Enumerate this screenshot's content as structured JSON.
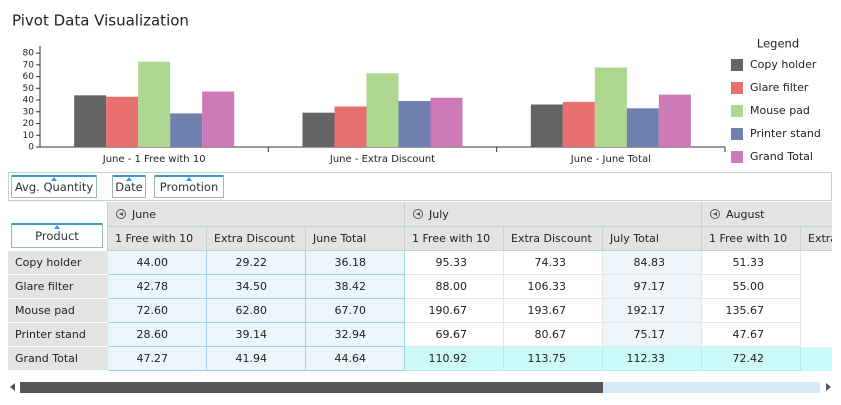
{
  "chart_data": {
    "type": "bar",
    "title": "Pivot Data Visualization",
    "categories": [
      "June - 1 Free with 10",
      "June - Extra Discount",
      "June - June Total"
    ],
    "series": [
      {
        "name": "Copy holder",
        "color": "#646464",
        "values": [
          44.0,
          29.22,
          36.18
        ]
      },
      {
        "name": "Glare filter",
        "color": "#e8716f",
        "values": [
          42.78,
          34.5,
          38.42
        ]
      },
      {
        "name": "Mouse pad",
        "color": "#add68e",
        "values": [
          72.6,
          62.8,
          67.7
        ]
      },
      {
        "name": "Printer stand",
        "color": "#6f7fae",
        "values": [
          28.6,
          39.14,
          32.94
        ]
      },
      {
        "name": "Grand Total",
        "color": "#cc7ab8",
        "values": [
          47.27,
          41.94,
          44.64
        ]
      }
    ],
    "ylim": [
      0,
      86
    ],
    "yticks": [
      0,
      10,
      20,
      30,
      40,
      50,
      60,
      70,
      80
    ],
    "legend_title": "Legend",
    "legend_position": "right",
    "grid": false
  },
  "table": {
    "measure": "Avg. Quantity",
    "filters": [
      "Date",
      "Promotion"
    ],
    "row_field": "Product",
    "column_groups": [
      {
        "name": "June",
        "columns": [
          "1 Free with 10",
          "Extra Discount",
          "June Total"
        ]
      },
      {
        "name": "July",
        "columns": [
          "1 Free with 10",
          "Extra Discount",
          "July Total"
        ]
      },
      {
        "name": "August",
        "columns": [
          "1 Free with 10",
          "Extra"
        ]
      }
    ],
    "rows": [
      {
        "label": "Copy holder",
        "values": [
          "44.00",
          "29.22",
          "36.18",
          "95.33",
          "74.33",
          "84.83",
          "51.33"
        ]
      },
      {
        "label": "Glare filter",
        "values": [
          "42.78",
          "34.50",
          "38.42",
          "88.00",
          "106.33",
          "97.17",
          "55.00"
        ]
      },
      {
        "label": "Mouse pad",
        "values": [
          "72.60",
          "62.80",
          "67.70",
          "190.67",
          "193.67",
          "192.17",
          "135.67"
        ]
      },
      {
        "label": "Printer stand",
        "values": [
          "28.60",
          "39.14",
          "32.94",
          "69.67",
          "80.67",
          "75.17",
          "47.67"
        ]
      },
      {
        "label": "Grand Total",
        "values": [
          "47.27",
          "41.94",
          "44.64",
          "110.92",
          "113.75",
          "112.33",
          "72.42"
        ]
      }
    ]
  }
}
